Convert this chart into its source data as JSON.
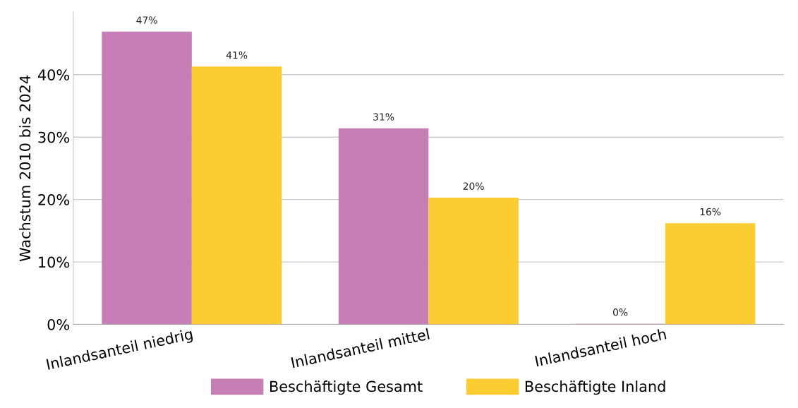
{
  "chart_data": {
    "type": "bar",
    "ylabel": "Wachstum 2010 bis 2024",
    "categories": [
      "Inlandsanteil niedrig",
      "Inlandsanteil mittel",
      "Inlandsanteil hoch"
    ],
    "series": [
      {
        "name": "Beschäftigte Gesamt",
        "color": "#c57fb4",
        "values": [
          46.9,
          31.4,
          0.1
        ],
        "value_labels": [
          "47%",
          "31%",
          "0%"
        ]
      },
      {
        "name": "Beschäftigte Inland",
        "color": "#fdcc33",
        "values": [
          41.3,
          20.3,
          16.2
        ],
        "value_labels": [
          "41%",
          "20%",
          "16%"
        ]
      }
    ],
    "ylim": [
      0,
      50
    ],
    "yticks": [
      {
        "value": 0,
        "label": "0%"
      },
      {
        "value": 10,
        "label": "10%"
      },
      {
        "value": 20,
        "label": "20%"
      },
      {
        "value": 30,
        "label": "30%"
      },
      {
        "value": 40,
        "label": "40%"
      }
    ],
    "grid": "y",
    "legend": "bottom"
  }
}
